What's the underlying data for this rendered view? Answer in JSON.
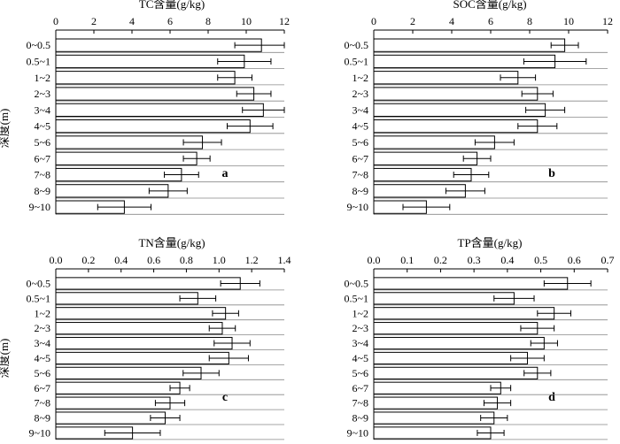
{
  "figure": {
    "y_axis_label": "深度(m)",
    "categories": [
      "0~0.5",
      "0.5~1",
      "1~2",
      "2~3",
      "3~4",
      "4~5",
      "5~6",
      "6~7",
      "7~8",
      "8~9",
      "9~10"
    ]
  },
  "chart_data": [
    {
      "type": "bar",
      "orientation": "horizontal",
      "title": "TC含量(g/kg)",
      "panel_label": "a",
      "xlim": [
        0,
        12
      ],
      "ticks": [
        0,
        2,
        4,
        6,
        8,
        10,
        12
      ],
      "tick_labels": [
        "0",
        "2",
        "4",
        "6",
        "8",
        "10",
        "12"
      ],
      "categories": [
        "0~0.5",
        "0.5~1",
        "1~2",
        "2~3",
        "3~4",
        "4~5",
        "5~6",
        "6~7",
        "7~8",
        "8~9",
        "9~10"
      ],
      "values": [
        10.8,
        9.9,
        9.4,
        10.4,
        10.9,
        10.2,
        7.7,
        7.4,
        6.6,
        5.9,
        3.6
      ],
      "errors": [
        1.4,
        1.4,
        0.9,
        0.9,
        1.1,
        1.2,
        1.0,
        0.7,
        0.9,
        1.0,
        1.4
      ],
      "grid": "horizontal lines"
    },
    {
      "type": "bar",
      "orientation": "horizontal",
      "title": "SOC含量(g/kg)",
      "panel_label": "b",
      "xlim": [
        0,
        12
      ],
      "ticks": [
        0,
        2,
        4,
        6,
        8,
        10,
        12
      ],
      "tick_labels": [
        "0",
        "2",
        "4",
        "6",
        "8",
        "10",
        "12"
      ],
      "categories": [
        "0~0.5",
        "0.5~1",
        "1~2",
        "2~3",
        "3~4",
        "4~5",
        "5~6",
        "6~7",
        "7~8",
        "8~9",
        "9~10"
      ],
      "values": [
        9.8,
        9.3,
        7.4,
        8.4,
        8.8,
        8.4,
        6.2,
        5.3,
        5.0,
        4.7,
        2.7
      ],
      "errors": [
        0.7,
        1.6,
        0.9,
        0.8,
        1.0,
        1.0,
        1.0,
        0.7,
        0.9,
        1.0,
        1.2
      ],
      "grid": "horizontal lines"
    },
    {
      "type": "bar",
      "orientation": "horizontal",
      "title": "TN含量(g/kg)",
      "panel_label": "c",
      "xlim": [
        0,
        1.4
      ],
      "ticks": [
        0,
        0.2,
        0.4,
        0.6,
        0.8,
        1.0,
        1.2,
        1.4
      ],
      "tick_labels": [
        "0.0",
        "0.2",
        "0.4",
        "0.6",
        "0.8",
        "1.0",
        "1.2",
        "1.4"
      ],
      "categories": [
        "0~0.5",
        "0.5~1",
        "1~2",
        "2~3",
        "3~4",
        "4~5",
        "5~6",
        "6~7",
        "7~8",
        "8~9",
        "9~10"
      ],
      "values": [
        1.13,
        0.87,
        1.04,
        1.02,
        1.08,
        1.06,
        0.89,
        0.76,
        0.7,
        0.67,
        0.47
      ],
      "errors": [
        0.12,
        0.11,
        0.08,
        0.08,
        0.11,
        0.12,
        0.11,
        0.06,
        0.09,
        0.09,
        0.17
      ],
      "grid": "horizontal lines"
    },
    {
      "type": "bar",
      "orientation": "horizontal",
      "title": "TP含量(g/kg)",
      "panel_label": "d",
      "xlim": [
        0,
        0.7
      ],
      "ticks": [
        0,
        0.1,
        0.2,
        0.3,
        0.4,
        0.5,
        0.6,
        0.7
      ],
      "tick_labels": [
        "0.0",
        "0.1",
        "0.2",
        "0.3",
        "0.4",
        "0.5",
        "0.6",
        "0.7"
      ],
      "categories": [
        "0~0.5",
        "0.5~1",
        "1~2",
        "2~3",
        "3~4",
        "4~5",
        "5~6",
        "6~7",
        "7~8",
        "8~9",
        "9~10"
      ],
      "values": [
        0.58,
        0.42,
        0.54,
        0.49,
        0.51,
        0.46,
        0.49,
        0.38,
        0.37,
        0.36,
        0.35
      ],
      "errors": [
        0.07,
        0.06,
        0.05,
        0.05,
        0.04,
        0.05,
        0.04,
        0.03,
        0.04,
        0.04,
        0.04
      ],
      "grid": "horizontal lines"
    }
  ]
}
